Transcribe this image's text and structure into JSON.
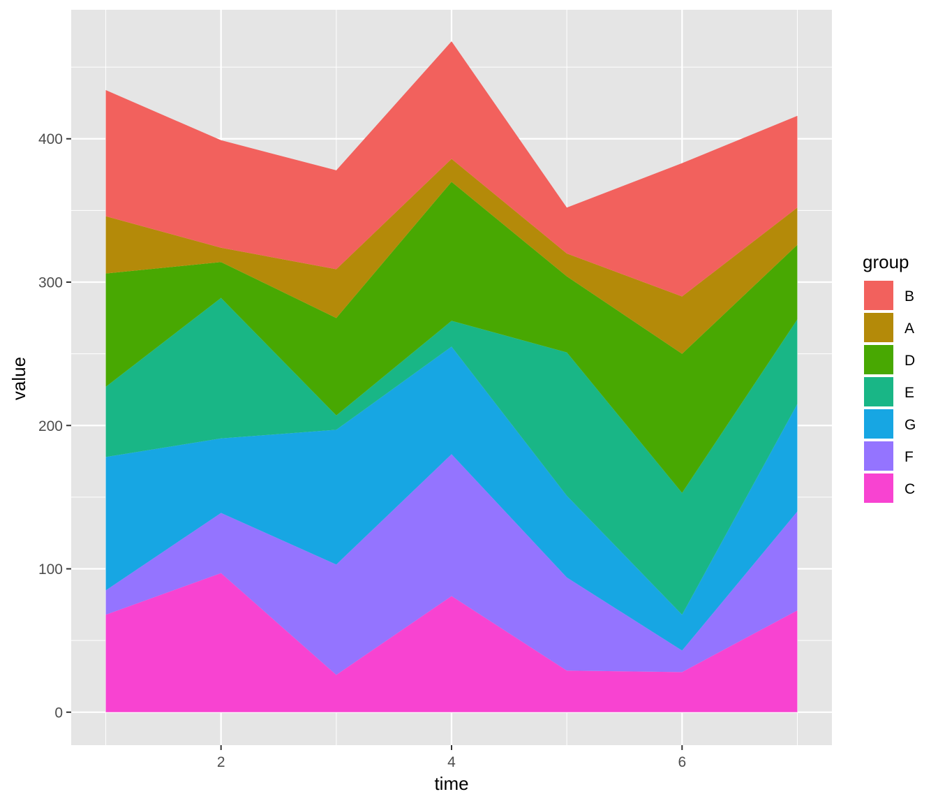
{
  "chart_data": {
    "type": "area",
    "stacked": true,
    "title": "",
    "xlabel": "time",
    "ylabel": "value",
    "x": [
      1,
      2,
      3,
      4,
      5,
      6,
      7
    ],
    "xlim": [
      0.7,
      7.3
    ],
    "ylim": [
      -23,
      490
    ],
    "x_ticks": [
      2,
      4,
      6
    ],
    "y_ticks": [
      0,
      100,
      200,
      300,
      400
    ],
    "grid": true,
    "background": "#E5E5E5",
    "legend": {
      "title": "group",
      "position": "right"
    },
    "series": [
      {
        "name": "C",
        "color": "#F843D1",
        "values": [
          68,
          97,
          26,
          81,
          29,
          28,
          71
        ]
      },
      {
        "name": "F",
        "color": "#9474FF",
        "values": [
          17,
          42,
          77,
          99,
          65,
          15,
          69
        ]
      },
      {
        "name": "G",
        "color": "#17A6E3",
        "values": [
          93,
          52,
          94,
          75,
          57,
          25,
          75
        ]
      },
      {
        "name": "E",
        "color": "#19B686",
        "values": [
          49,
          98,
          10,
          18,
          100,
          85,
          59
        ]
      },
      {
        "name": "D",
        "color": "#48A802",
        "values": [
          79,
          25,
          68,
          97,
          53,
          97,
          52
        ]
      },
      {
        "name": "A",
        "color": "#B48A09",
        "values": [
          40,
          10,
          34,
          16,
          16,
          40,
          26
        ]
      },
      {
        "name": "B",
        "color": "#F2615D",
        "values": [
          88,
          75,
          69,
          82,
          32,
          93,
          64
        ]
      }
    ],
    "legend_order": [
      "B",
      "A",
      "D",
      "E",
      "G",
      "F",
      "C"
    ]
  }
}
